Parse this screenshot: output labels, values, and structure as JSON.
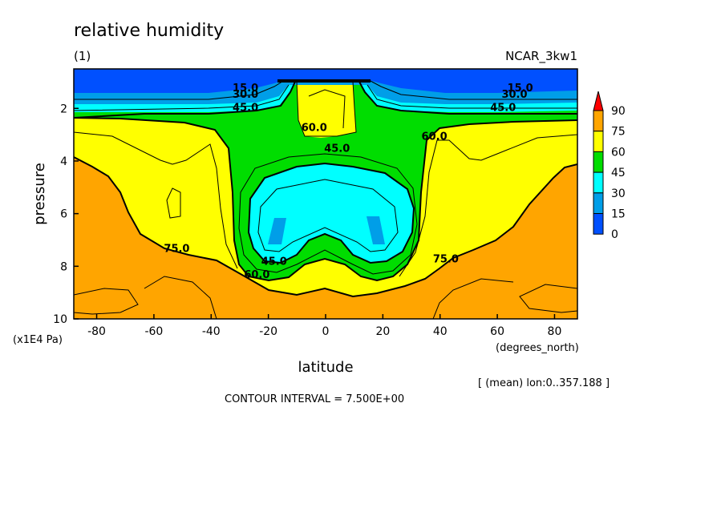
{
  "chart_data": {
    "type": "contour",
    "title": "relative humidity",
    "subtitle": "(1)",
    "dataset": "NCAR_3kw1",
    "xlabel": "latitude",
    "x_units": "(degrees_north)",
    "ylabel": "pressure",
    "y_units": "(x1E4 Pa)",
    "xlim": [
      -88,
      88
    ],
    "ylim": [
      10,
      0.5
    ],
    "x_ticks": [
      -80,
      -60,
      -40,
      -20,
      0,
      20,
      40,
      60,
      80
    ],
    "x_tick_labels": [
      "-80",
      "-60",
      "-40",
      "-20",
      "0",
      "20",
      "40",
      "60",
      "80"
    ],
    "y_ticks": [
      2,
      4,
      6,
      8,
      10
    ],
    "y_tick_labels": [
      "2",
      "4",
      "6",
      "8",
      "10"
    ],
    "note": "[ (mean) lon:0..357.188 ]",
    "contour_interval_text": "CONTOUR INTERVAL = 7.500E+00",
    "contour_labels": [
      {
        "text": "15.0",
        "x": -28,
        "y": 1.2
      },
      {
        "text": "30.0",
        "x": -28,
        "y": 1.45
      },
      {
        "text": "45.0",
        "x": -28,
        "y": 1.95
      },
      {
        "text": "15.0",
        "x": 68,
        "y": 1.2
      },
      {
        "text": "30.0",
        "x": 66,
        "y": 1.45
      },
      {
        "text": "45.0",
        "x": 62,
        "y": 1.95
      },
      {
        "text": "60.0",
        "x": -4,
        "y": 2.7
      },
      {
        "text": "60.0",
        "x": 38,
        "y": 3.05
      },
      {
        "text": "45.0",
        "x": 4,
        "y": 3.5
      },
      {
        "text": "75.0",
        "x": -52,
        "y": 7.3
      },
      {
        "text": "45.0",
        "x": -18,
        "y": 7.8
      },
      {
        "text": "60.0",
        "x": -24,
        "y": 8.3
      },
      {
        "text": "75.0",
        "x": 42,
        "y": 7.7
      }
    ],
    "colorbar": {
      "levels": [
        "90",
        "75",
        "60",
        "45",
        "30",
        "15",
        "0"
      ],
      "colors": [
        "#ff0000",
        "#ffa500",
        "#ffff00",
        "#00dd00",
        "#00ffff",
        "#009ee8",
        "#0050ff"
      ]
    },
    "fill_colors": {
      "c0": "#0050ff",
      "c15": "#009ee8",
      "c30": "#00ffff",
      "c45": "#00dd00",
      "c60": "#ffff00",
      "c75": "#ffa500"
    }
  }
}
